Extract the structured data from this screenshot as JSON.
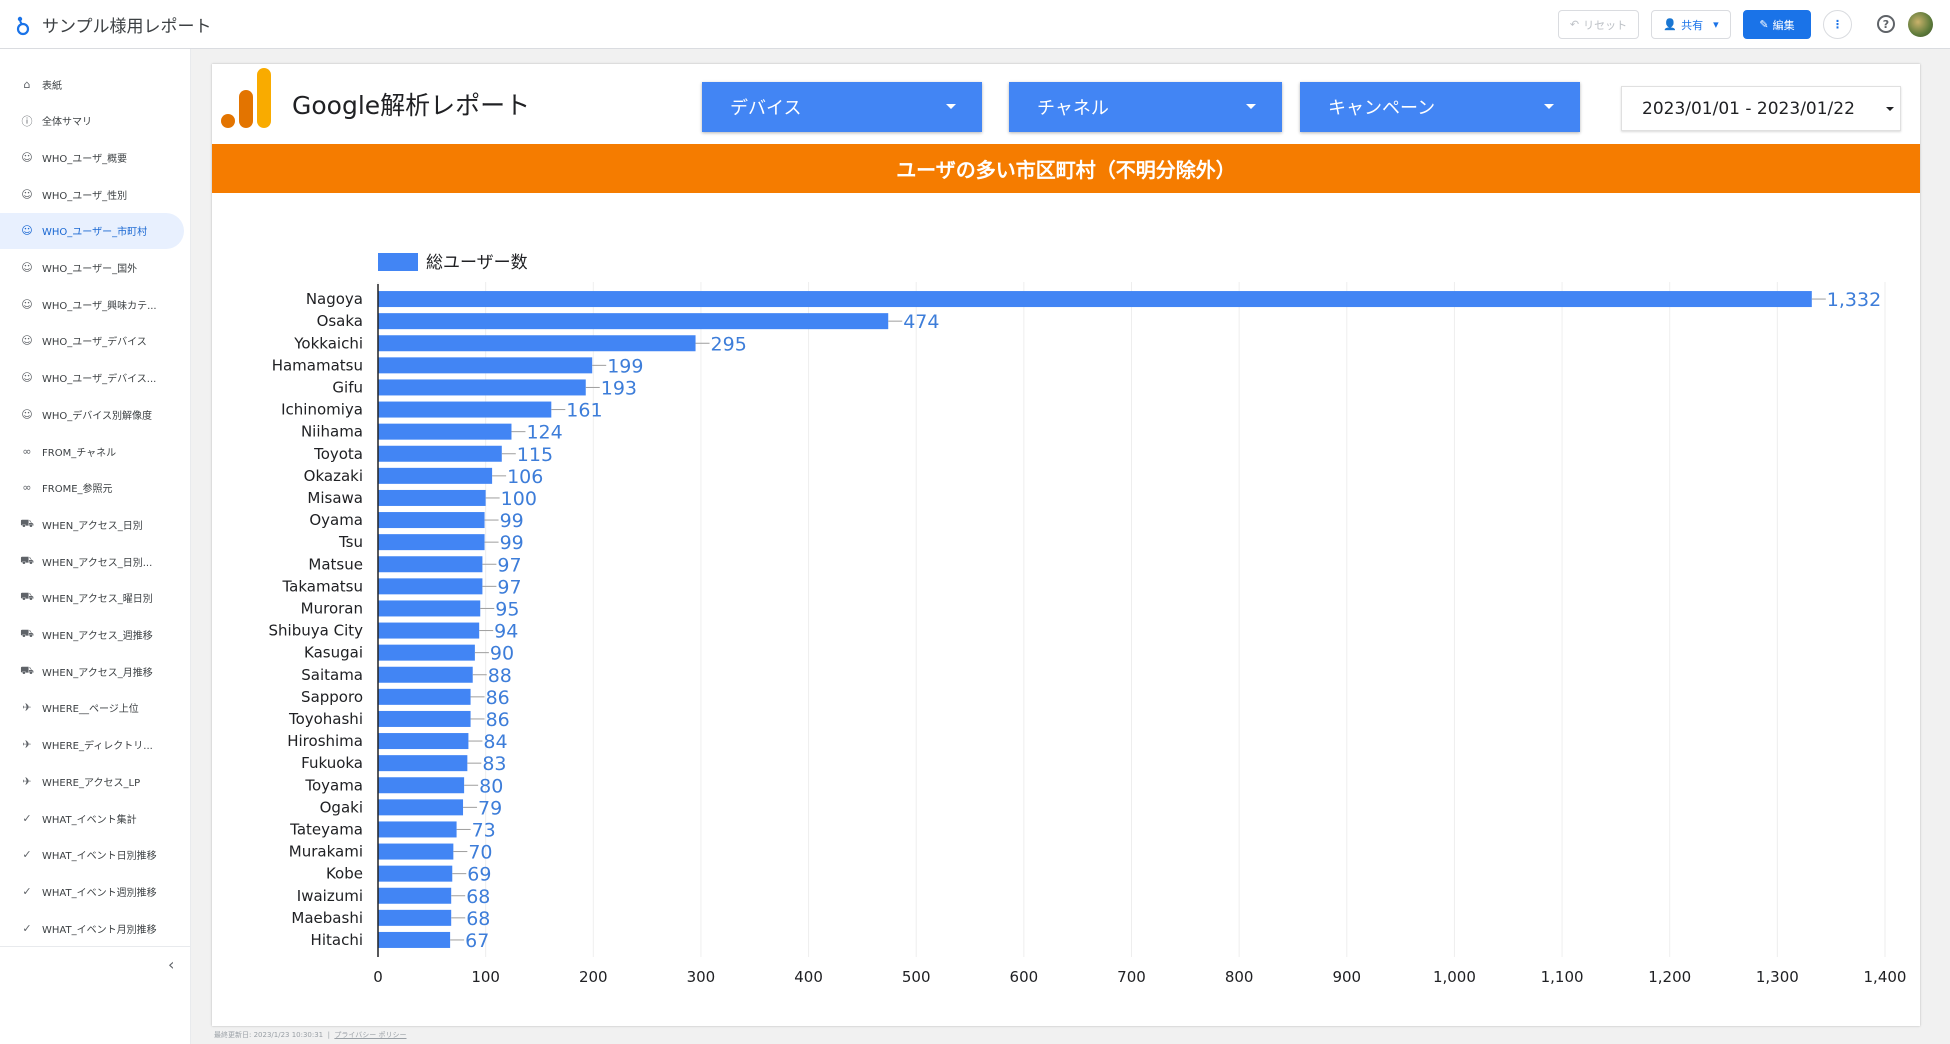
{
  "app": {
    "title": "サンプル様用レポート"
  },
  "toolbar": {
    "reset_label": "リセット",
    "share_label": "共有",
    "edit_label": "編集",
    "help_symbol": "?"
  },
  "sidebar": {
    "items": [
      {
        "label": "表紙",
        "icon": "home-icon",
        "active": false
      },
      {
        "label": "全体サマリ",
        "icon": "info-icon",
        "active": false
      },
      {
        "label": "WHO_ユーザ_概要",
        "icon": "face-icon",
        "active": false
      },
      {
        "label": "WHO_ユーザ_性別",
        "icon": "face-icon",
        "active": false
      },
      {
        "label": "WHO_ユーザー_市町村",
        "icon": "face-icon",
        "active": true
      },
      {
        "label": "WHO_ユーザー_国外",
        "icon": "face-icon",
        "active": false
      },
      {
        "label": "WHO_ユーザ_興味カテ...",
        "icon": "face-icon",
        "active": false
      },
      {
        "label": "WHO_ユーザ_デバイス",
        "icon": "face-icon",
        "active": false
      },
      {
        "label": "WHO_ユーザ_デバイス...",
        "icon": "face-icon",
        "active": false
      },
      {
        "label": "WHO_デバイス別解像度",
        "icon": "face-icon",
        "active": false
      },
      {
        "label": "FROM_チャネル",
        "icon": "link-icon",
        "active": false
      },
      {
        "label": "FROME_参照元",
        "icon": "link-icon",
        "active": false
      },
      {
        "label": "WHEN_アクセス_日別",
        "icon": "truck-icon",
        "active": false
      },
      {
        "label": "WHEN_アクセス_日別...",
        "icon": "truck-icon",
        "active": false
      },
      {
        "label": "WHEN_アクセス_曜日別",
        "icon": "truck-icon",
        "active": false
      },
      {
        "label": "WHEN_アクセス_週推移",
        "icon": "truck-icon",
        "active": false
      },
      {
        "label": "WHEN_アクセス_月推移",
        "icon": "truck-icon",
        "active": false
      },
      {
        "label": "WHERE__ページ上位",
        "icon": "plane-icon",
        "active": false
      },
      {
        "label": "WHERE_ディレクトリ...",
        "icon": "plane-icon",
        "active": false
      },
      {
        "label": "WHERE_アクセス_LP",
        "icon": "plane-icon",
        "active": false
      },
      {
        "label": "WHAT_イベント集計",
        "icon": "check-icon",
        "active": false
      },
      {
        "label": "WHAT_イベント日別推移",
        "icon": "check-icon",
        "active": false
      },
      {
        "label": "WHAT_イベント週別推移",
        "icon": "check-icon",
        "active": false
      },
      {
        "label": "WHAT_イベント月別推移",
        "icon": "check-icon",
        "active": false
      }
    ],
    "collapse_symbol": "‹"
  },
  "report": {
    "title": "Google解析レポート",
    "filters": {
      "device": "デバイス",
      "channel": "チャネル",
      "campaign": "キャンペーン"
    },
    "date_range": "2023/01/01 - 2023/01/22",
    "banner": "ユーザの多い市区町村（不明分除外）"
  },
  "colors": {
    "bar": "#4285f4",
    "label": "#3d7dd9",
    "banner": "#f57c00",
    "filter": "#4285f4"
  },
  "chart_data": {
    "type": "bar",
    "orientation": "horizontal",
    "title": "ユーザの多い市区町村（不明分除外）",
    "legend": "総ユーザー数",
    "legend_position": "top-left",
    "categories": [
      "Nagoya",
      "Osaka",
      "Yokkaichi",
      "Hamamatsu",
      "Gifu",
      "Ichinomiya",
      "Niihama",
      "Toyota",
      "Okazaki",
      "Misawa",
      "Oyama",
      "Tsu",
      "Matsue",
      "Takamatsu",
      "Muroran",
      "Shibuya City",
      "Kasugai",
      "Saitama",
      "Sapporo",
      "Toyohashi",
      "Hiroshima",
      "Fukuoka",
      "Toyama",
      "Ogaki",
      "Tateyama",
      "Murakami",
      "Kobe",
      "Iwaizumi",
      "Maebashi",
      "Hitachi"
    ],
    "values": [
      1332,
      474,
      295,
      199,
      193,
      161,
      124,
      115,
      106,
      100,
      99,
      99,
      97,
      97,
      95,
      94,
      90,
      88,
      86,
      86,
      84,
      83,
      80,
      79,
      73,
      70,
      69,
      68,
      68,
      67
    ],
    "value_labels": [
      "1,332",
      "474",
      "295",
      "199",
      "193",
      "161",
      "124",
      "115",
      "106",
      "100",
      "99",
      "99",
      "97",
      "97",
      "95",
      "94",
      "90",
      "88",
      "86",
      "86",
      "84",
      "83",
      "80",
      "79",
      "73",
      "70",
      "69",
      "68",
      "68",
      "67"
    ],
    "xlim": [
      0,
      1400
    ],
    "xticks": [
      0,
      100,
      200,
      300,
      400,
      500,
      600,
      700,
      800,
      900,
      1000,
      1100,
      1200,
      1300,
      1400
    ],
    "xtick_labels": [
      "0",
      "100",
      "200",
      "300",
      "400",
      "500",
      "600",
      "700",
      "800",
      "900",
      "1,000",
      "1,100",
      "1,200",
      "1,300",
      "1,400"
    ],
    "grid": true
  },
  "footer": {
    "updated": "最終更新日: 2023/1/23 10:30:31",
    "privacy": "プライバシー ポリシー"
  }
}
